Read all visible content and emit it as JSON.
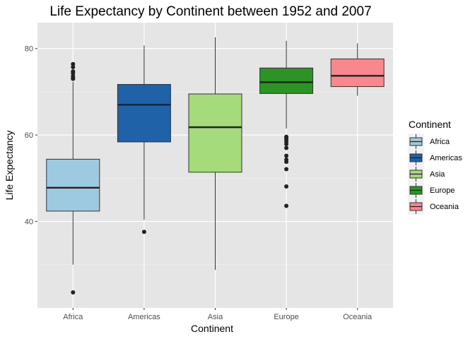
{
  "chart_data": {
    "type": "boxplot",
    "title": "Life Expectancy by Continent between 1952 and 2007",
    "xlabel": "Continent",
    "ylabel": "Life Expectancy",
    "ylim": [
      20,
      86
    ],
    "yticks": [
      40,
      60,
      80
    ],
    "grid": true,
    "legend": {
      "title": "Continent",
      "position": "right"
    },
    "categories": [
      "Africa",
      "Americas",
      "Asia",
      "Europe",
      "Oceania"
    ],
    "series": [
      {
        "name": "Africa",
        "color": "#9ECAE1",
        "min": 30.0,
        "q1": 42.4,
        "median": 47.8,
        "q3": 54.4,
        "max": 72.3,
        "outliers": [
          23.6,
          73.0,
          73.2,
          73.6,
          74.3,
          74.7,
          75.7,
          76.4
        ]
      },
      {
        "name": "Americas",
        "color": "#1F62A8",
        "min": 40.4,
        "q1": 58.4,
        "median": 67.0,
        "q3": 71.7,
        "max": 80.7,
        "outliers": [
          37.6
        ]
      },
      {
        "name": "Asia",
        "color": "#A5DB7A",
        "min": 28.8,
        "q1": 51.4,
        "median": 61.8,
        "q3": 69.5,
        "max": 82.6,
        "outliers": []
      },
      {
        "name": "Europe",
        "color": "#2C9425",
        "min": 61.5,
        "q1": 69.6,
        "median": 72.2,
        "q3": 75.5,
        "max": 81.8,
        "outliers": [
          43.6,
          48.1,
          52.1,
          53.8,
          54.3,
          55.2,
          57.0,
          57.9,
          58.5,
          59.0,
          59.3,
          59.6
        ]
      },
      {
        "name": "Oceania",
        "color": "#F8888E",
        "min": 69.1,
        "q1": 71.2,
        "median": 73.7,
        "q3": 77.6,
        "max": 81.2,
        "outliers": []
      }
    ]
  }
}
